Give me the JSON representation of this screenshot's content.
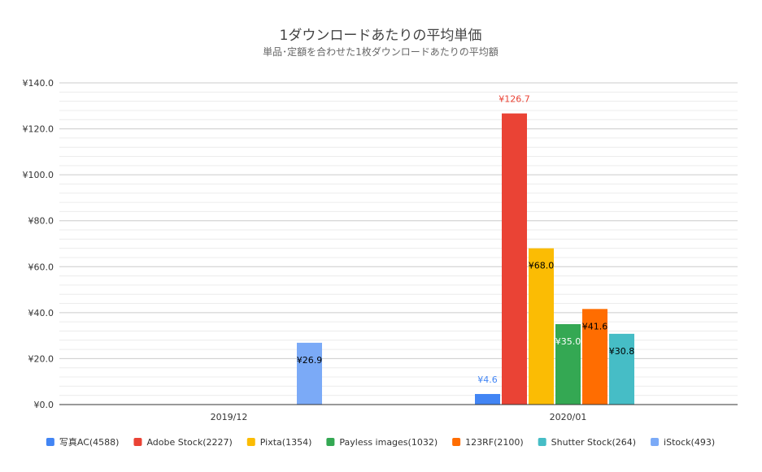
{
  "chart_data": {
    "type": "bar",
    "title": "1ダウンロードあたりの平均単価",
    "subtitle": "単品･定額を合わせた1枚ダウンロードあたりの平均額",
    "categories": [
      "2019/12",
      "2020/01"
    ],
    "ylim": [
      0,
      140
    ],
    "yticks": [
      0,
      20,
      40,
      60,
      80,
      100,
      120,
      140
    ],
    "ytick_labels": [
      "¥0.0",
      "¥20.0",
      "¥40.0",
      "¥60.0",
      "¥80.0",
      "¥100.0",
      "¥120.0",
      "¥140.0"
    ],
    "grid": true,
    "legend_position": "bottom",
    "series": [
      {
        "name": "写真AC(4588)",
        "color": "#4285f4",
        "values": [
          null,
          4.6
        ],
        "labels": [
          null,
          "¥4.6"
        ],
        "label_pos": "above",
        "label_color": "#4285f4"
      },
      {
        "name": "Adobe Stock(2227)",
        "color": "#ea4335",
        "values": [
          null,
          126.7
        ],
        "labels": [
          null,
          "¥126.7"
        ],
        "label_pos": "above",
        "label_color": "#ea4335"
      },
      {
        "name": "Pixta(1354)",
        "color": "#fbbc04",
        "values": [
          null,
          68.0
        ],
        "labels": [
          null,
          "¥68.0"
        ],
        "label_pos": "inside",
        "label_color": "#000000"
      },
      {
        "name": "Payless images(1032)",
        "color": "#34a853",
        "values": [
          null,
          35.0
        ],
        "labels": [
          null,
          "¥35.0"
        ],
        "label_pos": "inside",
        "label_color": "#ffffff"
      },
      {
        "name": "123RF(2100)",
        "color": "#ff6d01",
        "values": [
          null,
          41.6
        ],
        "labels": [
          null,
          "¥41.6"
        ],
        "label_pos": "inside",
        "label_color": "#000000"
      },
      {
        "name": "Shutter Stock(264)",
        "color": "#46bdc6",
        "values": [
          null,
          30.8
        ],
        "labels": [
          null,
          "¥30.8"
        ],
        "label_pos": "inside",
        "label_color": "#000000"
      },
      {
        "name": "iStock(493)",
        "color": "#7baaf7",
        "values": [
          26.9,
          null
        ],
        "labels": [
          "¥26.9",
          null
        ],
        "label_pos": "inside",
        "label_color": "#000000"
      }
    ]
  }
}
